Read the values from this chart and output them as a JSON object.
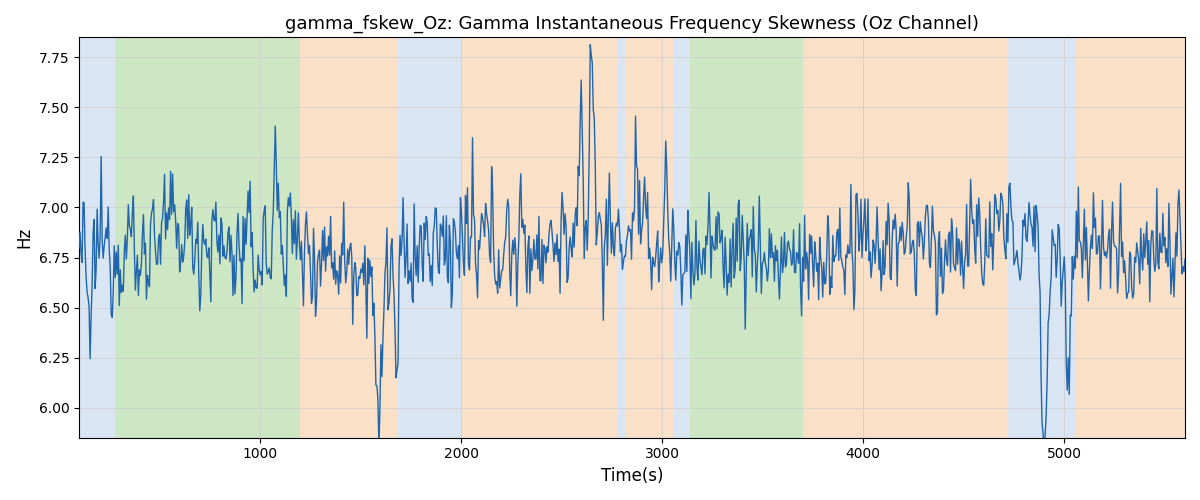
{
  "title": "gamma_fskew_Oz: Gamma Instantaneous Frequency Skewness (Oz Channel)",
  "xlabel": "Time(s)",
  "ylabel": "Hz",
  "xlim": [
    100,
    5600
  ],
  "ylim": [
    5.85,
    7.85
  ],
  "yticks": [
    6.0,
    6.25,
    6.5,
    6.75,
    7.0,
    7.25,
    7.5,
    7.75
  ],
  "line_color": "#2166ac",
  "line_width": 1.0,
  "background_regions": [
    {
      "xmin": 100,
      "xmax": 280,
      "color": "#aec6e8",
      "alpha": 0.45
    },
    {
      "xmin": 280,
      "xmax": 1200,
      "color": "#90c97e",
      "alpha": 0.45
    },
    {
      "xmin": 1200,
      "xmax": 1680,
      "color": "#f5c89a",
      "alpha": 0.55
    },
    {
      "xmin": 1680,
      "xmax": 2000,
      "color": "#aec6e8",
      "alpha": 0.45
    },
    {
      "xmin": 2000,
      "xmax": 2780,
      "color": "#f5c89a",
      "alpha": 0.55
    },
    {
      "xmin": 2780,
      "xmax": 2820,
      "color": "#aec6e8",
      "alpha": 0.45
    },
    {
      "xmin": 2820,
      "xmax": 3060,
      "color": "#f5c89a",
      "alpha": 0.55
    },
    {
      "xmin": 3060,
      "xmax": 3140,
      "color": "#aec6e8",
      "alpha": 0.45
    },
    {
      "xmin": 3140,
      "xmax": 3700,
      "color": "#90c97e",
      "alpha": 0.45
    },
    {
      "xmin": 3700,
      "xmax": 3760,
      "color": "#f5c89a",
      "alpha": 0.55
    },
    {
      "xmin": 3760,
      "xmax": 4720,
      "color": "#f5c89a",
      "alpha": 0.55
    },
    {
      "xmin": 4720,
      "xmax": 5060,
      "color": "#aec6e8",
      "alpha": 0.45
    },
    {
      "xmin": 5060,
      "xmax": 5700,
      "color": "#f5c89a",
      "alpha": 0.55
    }
  ],
  "seed": 12345,
  "n_points": 1100,
  "base_freq": 6.8,
  "noise_std": 0.14,
  "ar_coeff": 0.35,
  "grid_color": "#cccccc",
  "fig_width": 12.0,
  "fig_height": 5.0,
  "dpi": 100
}
